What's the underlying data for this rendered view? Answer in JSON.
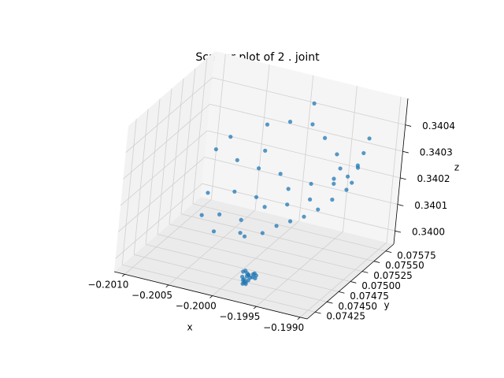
{
  "chart_data": {
    "type": "scatter3d",
    "title": "Scatter plot of 2 . joint",
    "xlabel": "x",
    "ylabel": "y",
    "zlabel": "z",
    "color": "#1f77b4",
    "grid": true,
    "xlim": [
      -0.20112,
      -0.19892
    ],
    "ylim": [
      0.07408,
      0.07592
    ],
    "zlim": [
      0.33995,
      0.3405
    ],
    "xticks": [
      {
        "value": -0.201,
        "label": "−0.2010"
      },
      {
        "value": -0.2005,
        "label": "−0.2005"
      },
      {
        "value": -0.2,
        "label": "−0.2000"
      },
      {
        "value": -0.1995,
        "label": "−0.1995"
      },
      {
        "value": -0.199,
        "label": "−0.1990"
      }
    ],
    "yticks": [
      0.07425,
      {
        "value": 0.0745,
        "label": "0.07450"
      },
      0.07475,
      {
        "value": 0.075,
        "label": "0.07500"
      },
      0.07525,
      {
        "value": 0.0755,
        "label": "0.07550"
      },
      0.07575
    ],
    "zticks": [
      {
        "value": 0.34,
        "label": "0.3400"
      },
      0.3401,
      0.3402,
      0.3403,
      0.3404
    ],
    "x": [
      -0.19988,
      -0.19985,
      -0.19982,
      -0.1998,
      -0.19978,
      -0.19984,
      -0.19987,
      -0.19976,
      -0.19981,
      -0.19983,
      -0.1999,
      -0.19979,
      -0.19986,
      -0.19977,
      -0.19982,
      -0.19984,
      -0.1998,
      -0.19975,
      -0.19989,
      -0.19983,
      -0.2007,
      -0.2006,
      -0.2005,
      -0.2004,
      -0.2003,
      -0.2002,
      -0.2001,
      -0.2,
      -0.1999,
      -0.1998,
      -0.1997,
      -0.1996,
      -0.1995,
      -0.1994,
      -0.1993,
      -0.1992,
      -0.2006,
      -0.2004,
      -0.2002,
      -0.2,
      -0.1998,
      -0.1996,
      -0.1994,
      -0.1992,
      -0.2005,
      -0.2003,
      -0.2001,
      -0.1999,
      -0.1997,
      -0.1995,
      -0.1993,
      -0.2008,
      -0.2007,
      -0.2004,
      -0.2001,
      -0.1998,
      -0.1996,
      -0.1994,
      -0.1993,
      -0.1992,
      -0.2003,
      -0.1999
    ],
    "y": [
      0.07448,
      0.07452,
      0.07445,
      0.0745,
      0.07455,
      0.07442,
      0.0746,
      0.07447,
      0.07458,
      0.0744,
      0.07453,
      0.07444,
      0.07449,
      0.07457,
      0.07446,
      0.07454,
      0.07441,
      0.07451,
      0.07456,
      0.07443,
      0.0752,
      0.0749,
      0.0751,
      0.0748,
      0.0752,
      0.075,
      0.0749,
      0.0751,
      0.0752,
      0.0753,
      0.0754,
      0.0755,
      0.0756,
      0.0757,
      0.0756,
      0.0755,
      0.0756,
      0.0757,
      0.0758,
      0.0756,
      0.0757,
      0.0758,
      0.0757,
      0.0756,
      0.0754,
      0.0755,
      0.0753,
      0.0754,
      0.0755,
      0.0756,
      0.0757,
      0.0755,
      0.0756,
      0.0758,
      0.0757,
      0.0756,
      0.0755,
      0.0754,
      0.0753,
      0.0757,
      0.0756,
      0.0758
    ],
    "z": [
      0.33997,
      0.33998,
      0.33996,
      0.33997,
      0.33998,
      0.33997,
      0.33996,
      0.33998,
      0.33997,
      0.33996,
      0.33998,
      0.33997,
      0.33996,
      0.33997,
      0.33998,
      0.33997,
      0.33996,
      0.33997,
      0.33998,
      0.33996,
      0.34011,
      0.34008,
      0.34006,
      0.34005,
      0.34004,
      0.34003,
      0.34004,
      0.34003,
      0.34005,
      0.34006,
      0.34007,
      0.34009,
      0.34012,
      0.34015,
      0.3402,
      0.34028,
      0.34018,
      0.34015,
      0.34013,
      0.34012,
      0.34014,
      0.34016,
      0.3402,
      0.34032,
      0.3401,
      0.34008,
      0.34009,
      0.3401,
      0.34012,
      0.34018,
      0.34025,
      0.34022,
      0.34026,
      0.3403,
      0.34035,
      0.34038,
      0.34036,
      0.34033,
      0.3403,
      0.34036,
      0.34024,
      0.34042
    ]
  }
}
